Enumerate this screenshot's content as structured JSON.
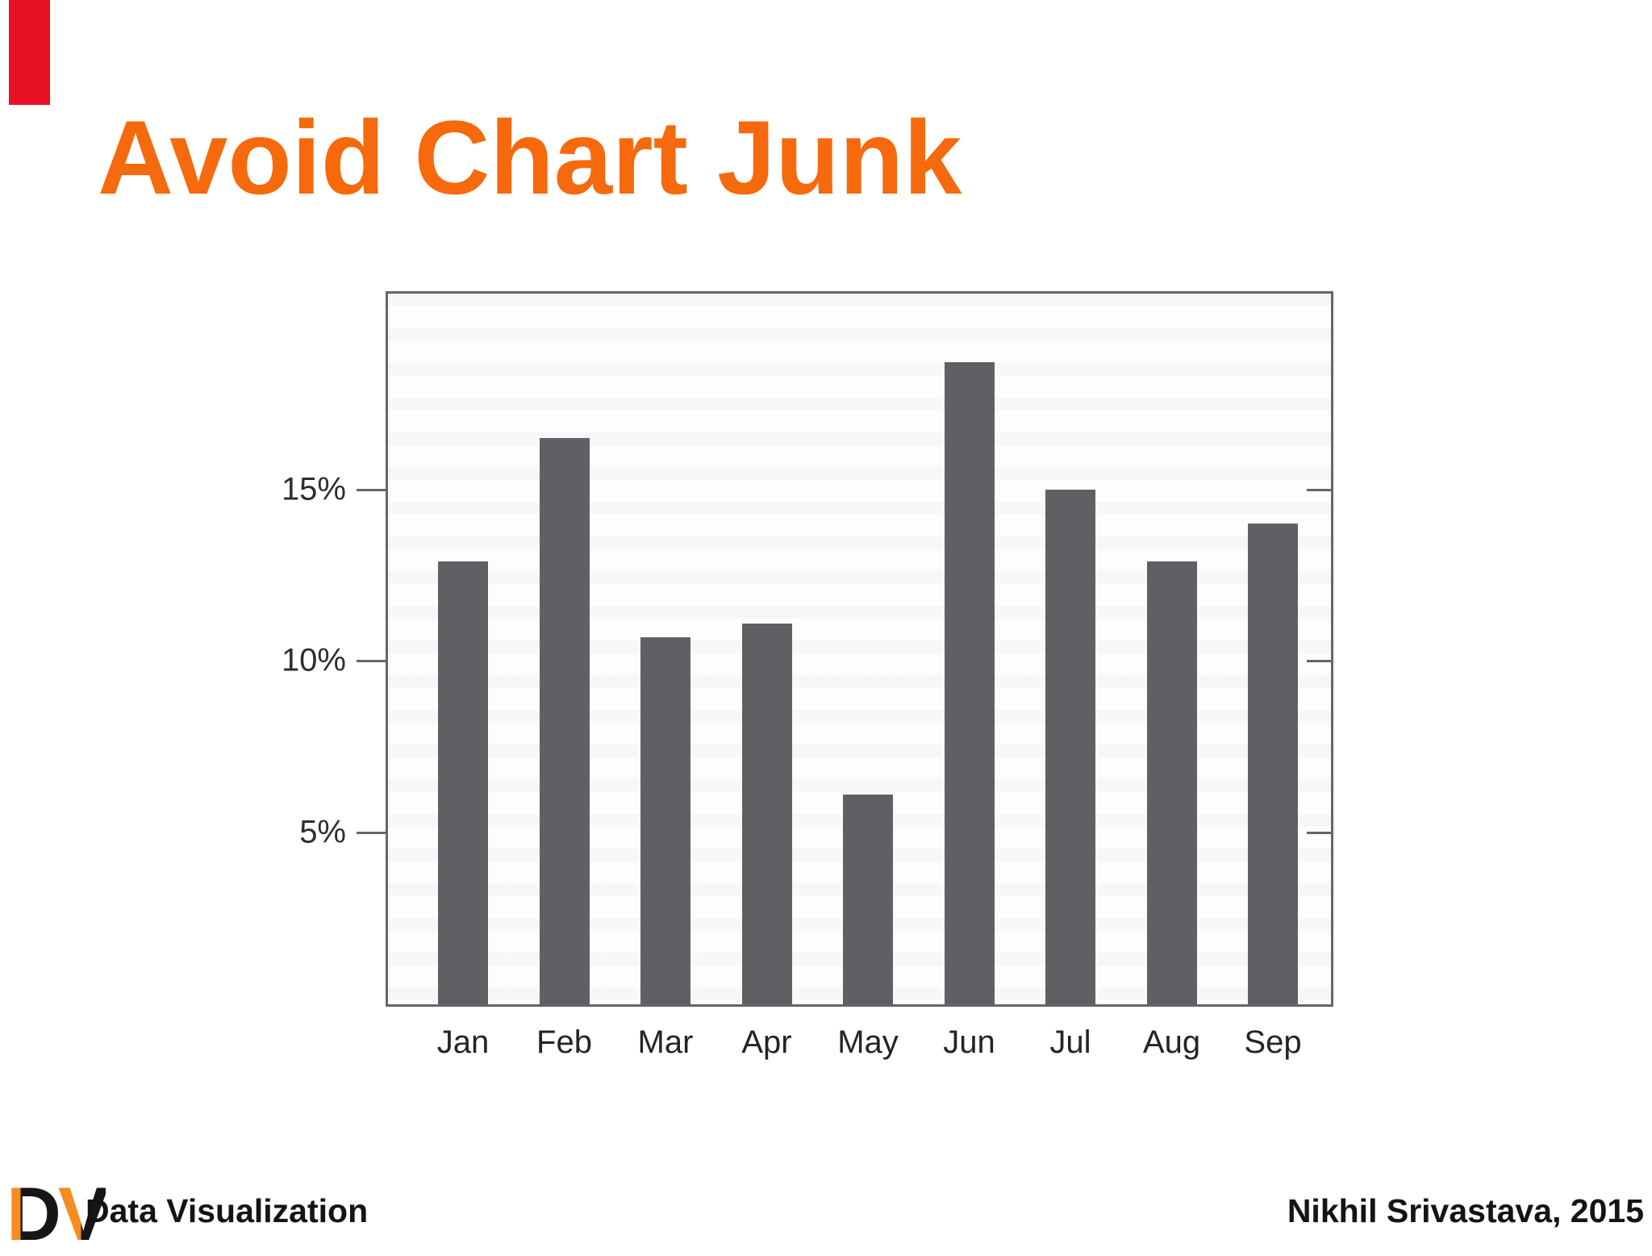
{
  "slide": {
    "title": "Avoid Chart Junk",
    "title_color": "#f6690c",
    "corner_marker_color": "#e81123",
    "background_color": "#ffffff"
  },
  "chart_data": {
    "type": "bar",
    "title": "",
    "xlabel": "",
    "ylabel": "",
    "categories": [
      "Jan",
      "Feb",
      "Mar",
      "Apr",
      "May",
      "Jun",
      "Jul",
      "Aug",
      "Sep"
    ],
    "values": [
      12.9,
      16.5,
      10.7,
      11.1,
      6.1,
      18.7,
      15.0,
      12.9,
      14.0
    ],
    "unit": "%",
    "ylim": [
      0,
      20.7
    ],
    "yticks": [
      5,
      10,
      15
    ],
    "ytick_labels": [
      "5%",
      "10%",
      "15%"
    ],
    "grid": false,
    "legend": false,
    "bar_color": "#606064",
    "frame_color": "#66666a"
  },
  "footer": {
    "logo_d": "D",
    "logo_v": "V",
    "logo_orange": "#f68b1f",
    "logo_black": "#161616",
    "course": "Data Visualization",
    "author": "Nikhil Srivastava, 2015"
  }
}
